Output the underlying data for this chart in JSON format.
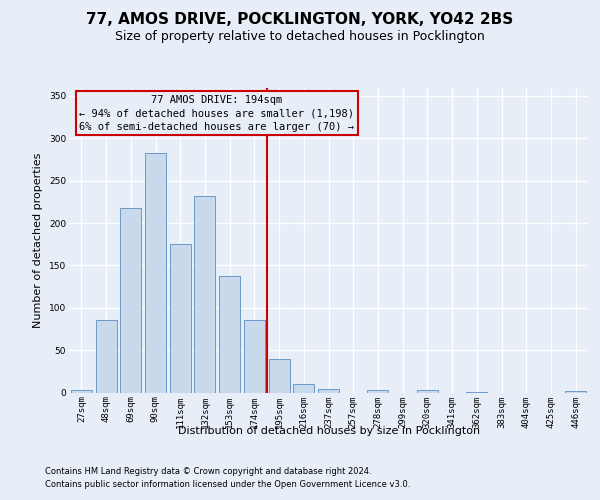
{
  "title": "77, AMOS DRIVE, POCKLINGTON, YORK, YO42 2BS",
  "subtitle": "Size of property relative to detached houses in Pocklington",
  "xlabel": "Distribution of detached houses by size in Pocklington",
  "ylabel": "Number of detached properties",
  "categories": [
    "27sqm",
    "48sqm",
    "69sqm",
    "90sqm",
    "111sqm",
    "132sqm",
    "153sqm",
    "174sqm",
    "195sqm",
    "216sqm",
    "237sqm",
    "257sqm",
    "278sqm",
    "299sqm",
    "320sqm",
    "341sqm",
    "362sqm",
    "383sqm",
    "404sqm",
    "425sqm",
    "446sqm"
  ],
  "values": [
    3,
    86,
    218,
    283,
    175,
    232,
    138,
    85,
    40,
    10,
    4,
    0,
    3,
    0,
    3,
    0,
    1,
    0,
    0,
    0,
    2
  ],
  "bar_color": "#c9d9ec",
  "bar_edge_color": "#5b8ec4",
  "vline_color": "#cc0000",
  "vline_index": 7.5,
  "annotation_lines": [
    "77 AMOS DRIVE: 194sqm",
    "← 94% of detached houses are smaller (1,198)",
    "6% of semi-detached houses are larger (70) →"
  ],
  "annotation_box_edge_color": "#cc0000",
  "ylim": [
    0,
    360
  ],
  "yticks": [
    0,
    50,
    100,
    150,
    200,
    250,
    300,
    350
  ],
  "footer_line1": "Contains HM Land Registry data © Crown copyright and database right 2024.",
  "footer_line2": "Contains public sector information licensed under the Open Government Licence v3.0.",
  "background_color": "#e8eef8",
  "grid_color": "#ffffff",
  "title_fontsize": 11,
  "subtitle_fontsize": 9,
  "tick_fontsize": 6.5,
  "ylabel_fontsize": 8,
  "xlabel_fontsize": 8,
  "annotation_fontsize": 7.5,
  "footer_fontsize": 6
}
